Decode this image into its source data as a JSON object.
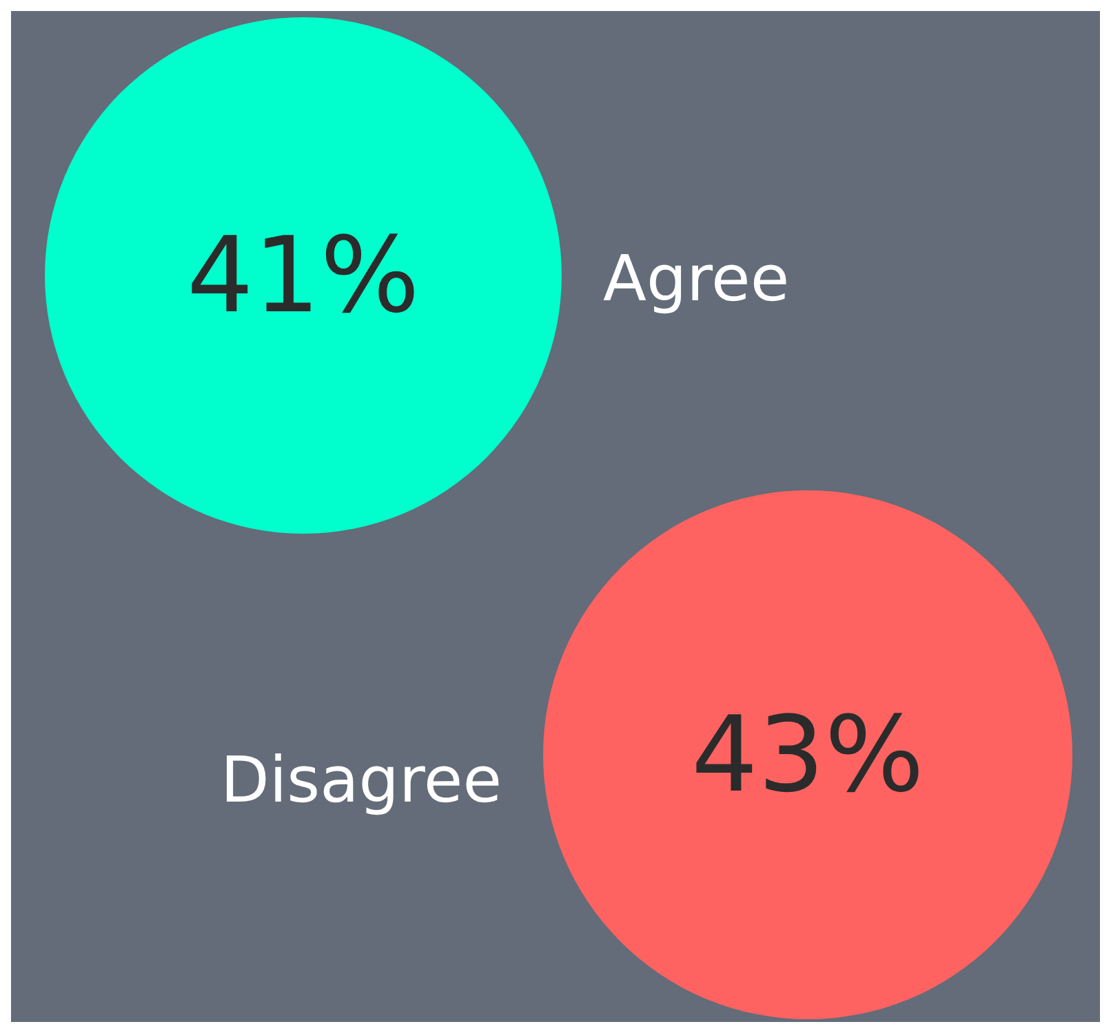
{
  "chart_data": {
    "type": "other",
    "categories": [
      "Agree",
      "Disagree"
    ],
    "values": [
      41,
      43
    ],
    "value_labels": [
      "41%",
      "43%"
    ],
    "colors": [
      "#00ffcc",
      "#ff6361"
    ]
  }
}
